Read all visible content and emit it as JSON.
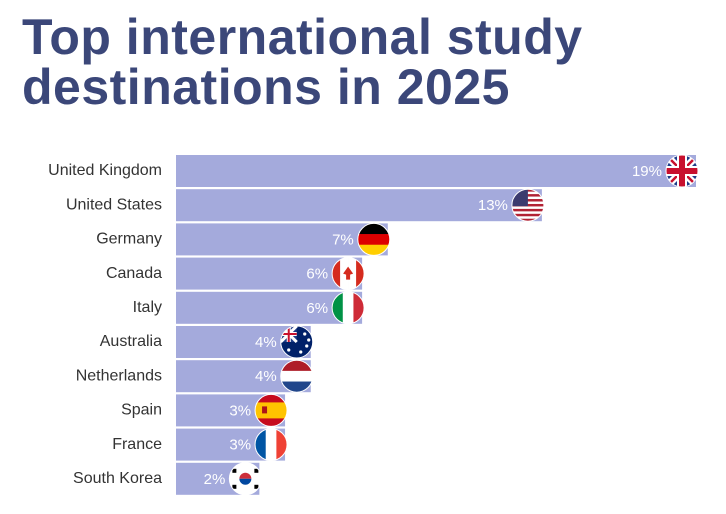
{
  "chart_data": {
    "type": "bar",
    "orientation": "horizontal",
    "title": "Top international study destinations in 2025",
    "categories": [
      "United Kingdom",
      "United States",
      "Germany",
      "Canada",
      "Italy",
      "Australia",
      "Netherlands",
      "Spain",
      "France",
      "South Korea"
    ],
    "values": [
      19,
      13,
      7,
      6,
      6,
      4,
      4,
      3,
      3,
      2
    ],
    "value_labels": [
      "19%",
      "13%",
      "7%",
      "6%",
      "6%",
      "4%",
      "4%",
      "3%",
      "3%",
      "2%"
    ],
    "color": "#a4aadc"
  }
}
